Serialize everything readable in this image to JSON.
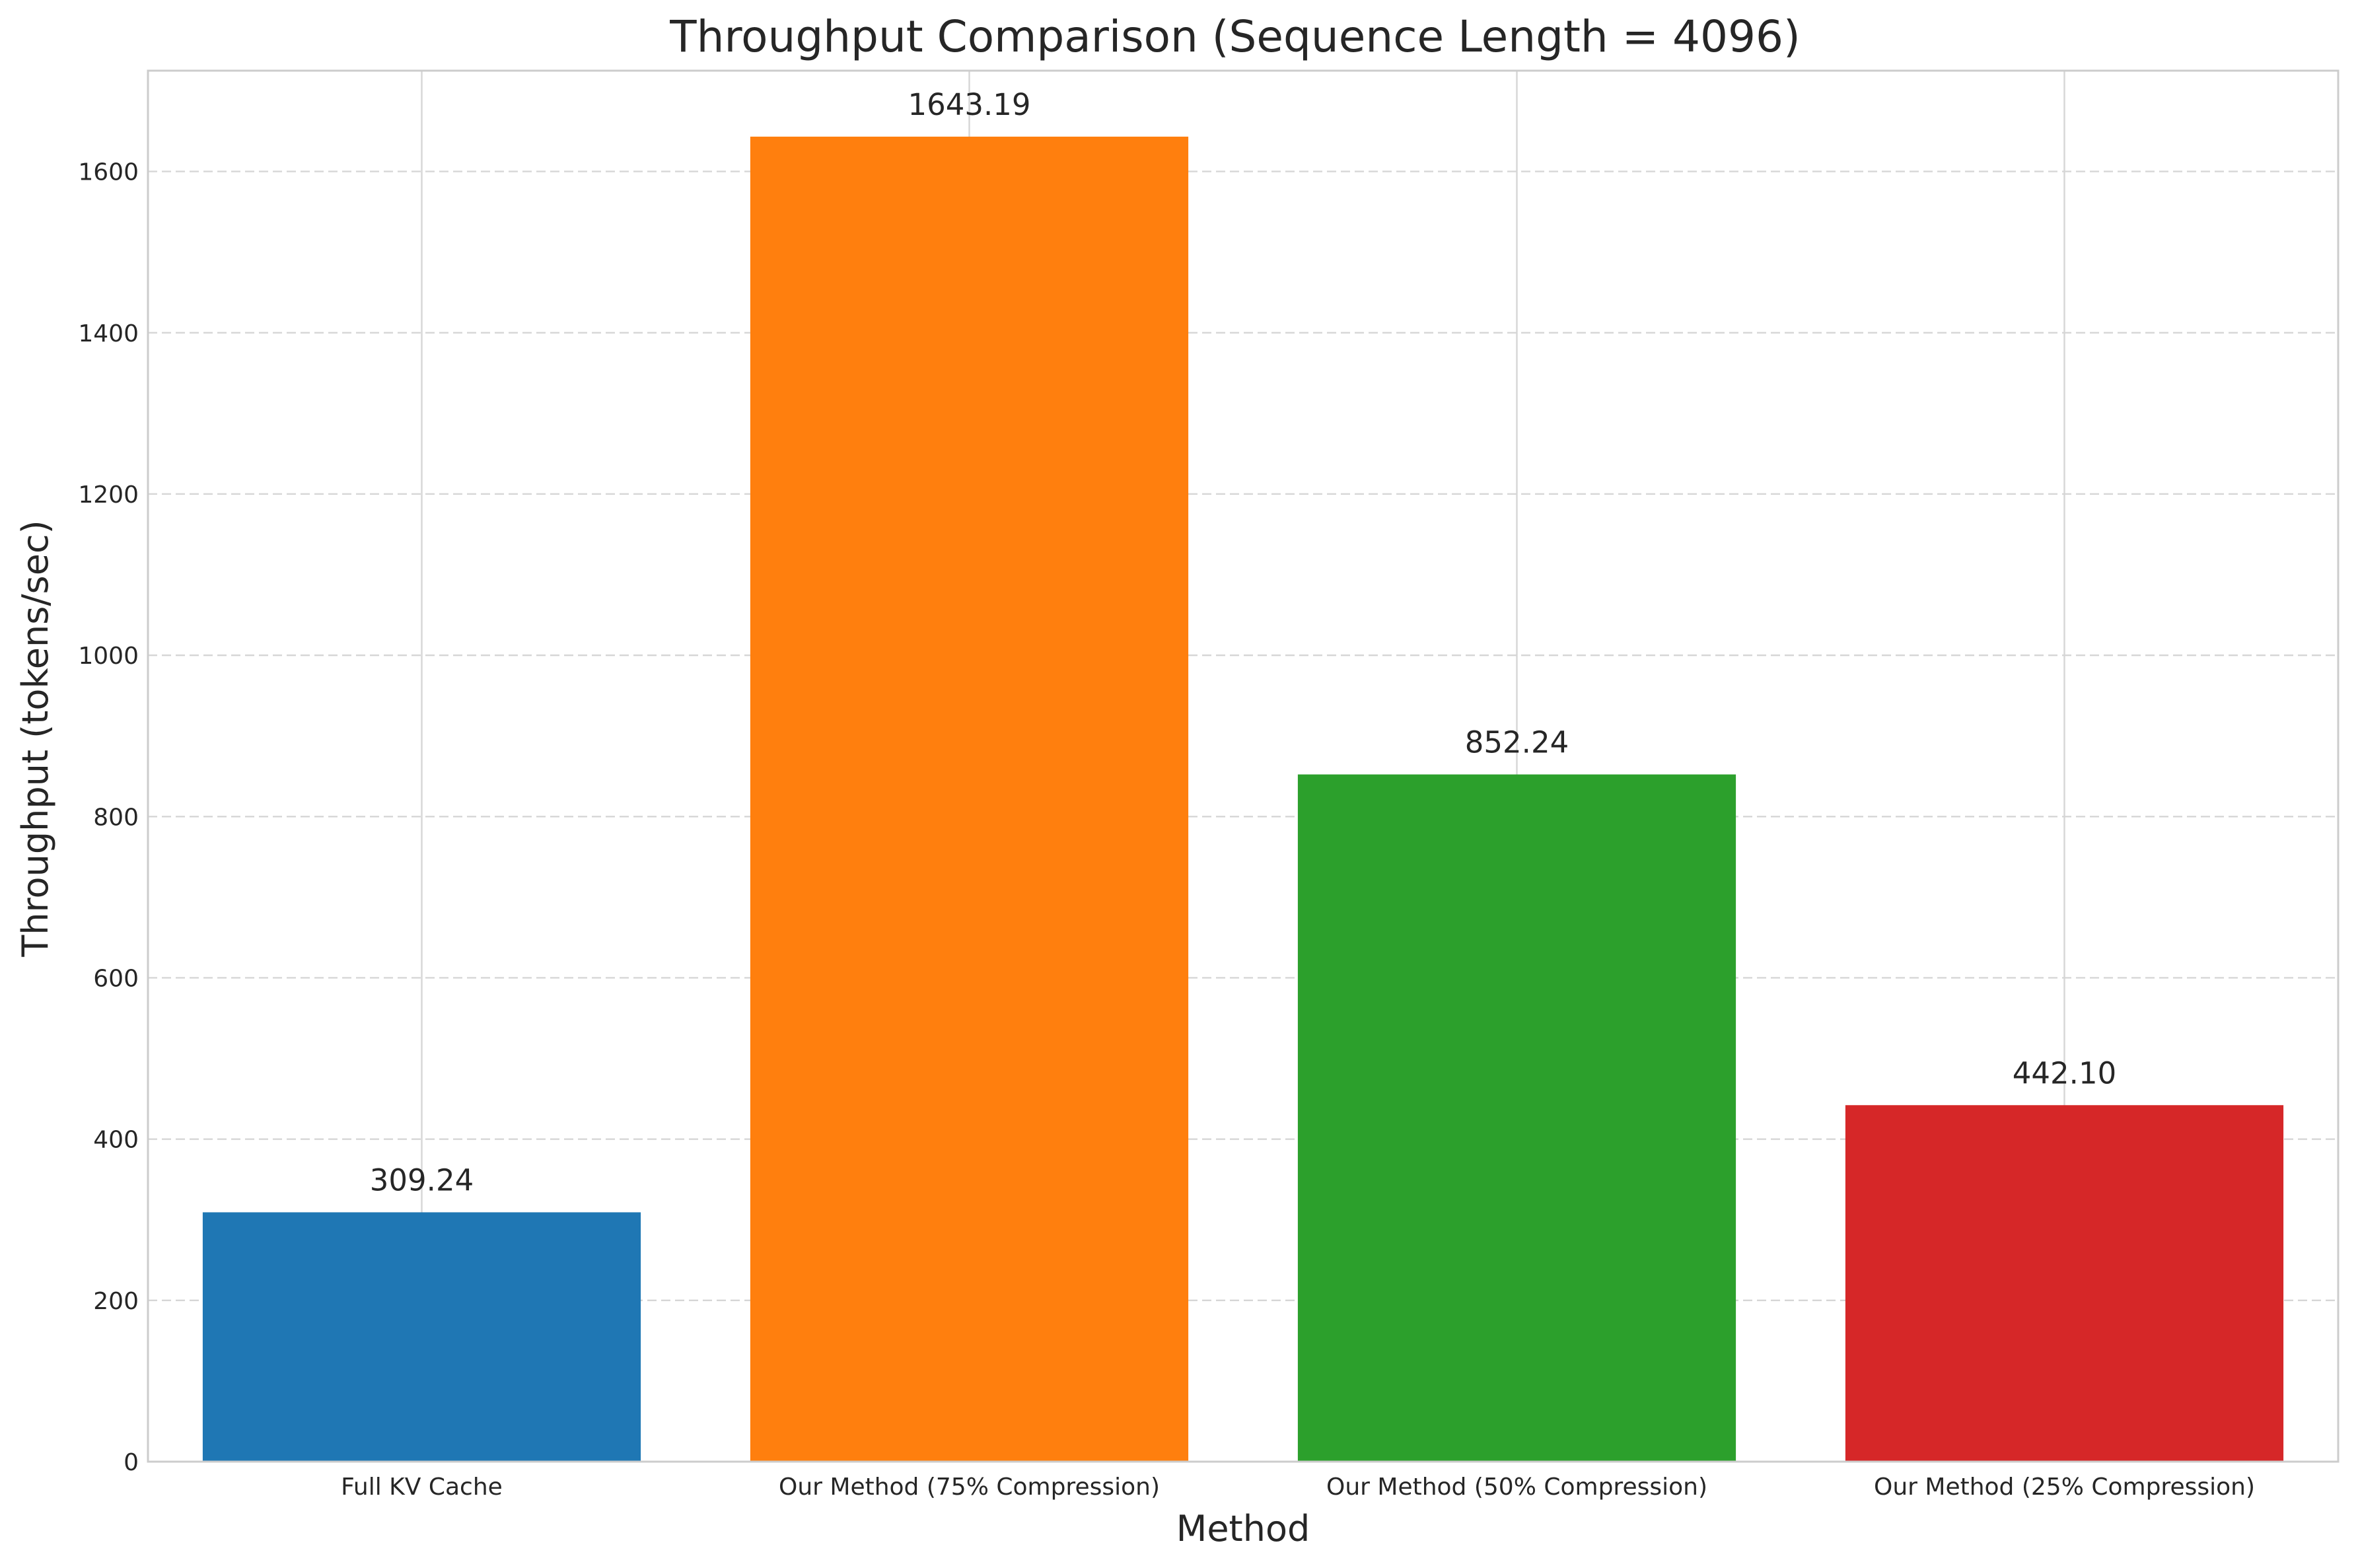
{
  "chart_data": {
    "type": "bar",
    "title": "Throughput Comparison (Sequence Length = 4096)",
    "xlabel": "Method",
    "ylabel": "Throughput (tokens/sec)",
    "categories": [
      "Full KV Cache",
      "Our Method (75% Compression)",
      "Our Method (50% Compression)",
      "Our Method (25% Compression)"
    ],
    "values": [
      309.24,
      1643.19,
      852.24,
      442.1
    ],
    "value_labels": [
      "309.24",
      "1643.19",
      "852.24",
      "442.10"
    ],
    "colors": [
      "#1f77b4",
      "#ff7f0e",
      "#2ca02c",
      "#d62728"
    ],
    "ylim": [
      0,
      1725
    ],
    "yticks": [
      0,
      200,
      400,
      600,
      800,
      1000,
      1200,
      1400,
      1600
    ],
    "grid": true,
    "legend": "none"
  }
}
